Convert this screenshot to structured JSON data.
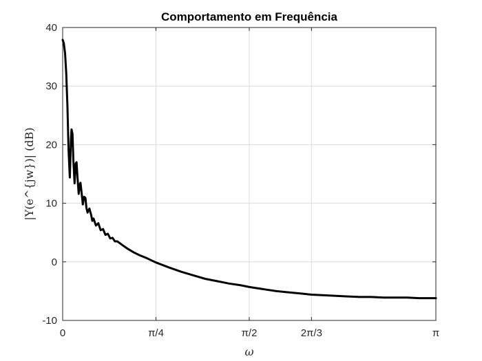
{
  "chart_data": {
    "type": "line",
    "title": "Comportamento em Frequência",
    "xlabel": "ω",
    "ylabel": "|Y(e^{jw})| (dB)",
    "xlim": [
      0,
      3.14159
    ],
    "ylim": [
      -10,
      40
    ],
    "grid": true,
    "legend": "none",
    "x_ticks": [
      {
        "value": 0,
        "label": "0"
      },
      {
        "value": 0.7854,
        "label": "π/4"
      },
      {
        "value": 1.5708,
        "label": "π/2"
      },
      {
        "value": 2.0944,
        "label": "2π/3"
      },
      {
        "value": 3.1416,
        "label": "π"
      }
    ],
    "y_ticks": [
      {
        "value": -10,
        "label": "-10"
      },
      {
        "value": 0,
        "label": "0"
      },
      {
        "value": 10,
        "label": "10"
      },
      {
        "value": 20,
        "label": "20"
      },
      {
        "value": 30,
        "label": "30"
      },
      {
        "value": 40,
        "label": "40"
      }
    ],
    "series": [
      {
        "color": "#000000",
        "x": [
          0.0,
          0.01,
          0.02,
          0.03,
          0.04,
          0.05,
          0.06,
          0.07,
          0.075,
          0.083,
          0.09,
          0.1,
          0.11,
          0.117,
          0.125,
          0.135,
          0.145,
          0.15,
          0.16,
          0.17,
          0.18,
          0.192,
          0.2,
          0.21,
          0.225,
          0.24,
          0.25,
          0.26,
          0.28,
          0.3,
          0.32,
          0.34,
          0.36,
          0.38,
          0.4,
          0.42,
          0.44,
          0.46,
          0.5,
          0.55,
          0.6,
          0.65,
          0.7,
          0.785,
          0.9,
          1.0,
          1.1,
          1.2,
          1.3,
          1.4,
          1.5,
          1.571,
          1.7,
          1.8,
          1.9,
          2.0,
          2.094,
          2.2,
          2.3,
          2.4,
          2.5,
          2.6,
          2.7,
          2.8,
          2.9,
          3.0,
          3.1,
          3.142
        ],
        "y": [
          37.9,
          37.3,
          35.6,
          32.2,
          26.7,
          19.0,
          14.4,
          21.0,
          22.6,
          21.8,
          17.5,
          13.4,
          16.8,
          17.0,
          14.3,
          11.6,
          13.2,
          13.5,
          11.7,
          9.8,
          11.1,
          10.9,
          9.2,
          8.4,
          9.1,
          8.0,
          7.0,
          7.4,
          6.2,
          6.6,
          5.4,
          5.6,
          4.6,
          4.8,
          4.0,
          4.1,
          3.5,
          3.5,
          2.9,
          2.2,
          1.6,
          1.1,
          0.7,
          -0.1,
          -1.0,
          -1.7,
          -2.3,
          -2.9,
          -3.3,
          -3.7,
          -4.0,
          -4.3,
          -4.7,
          -5.0,
          -5.2,
          -5.4,
          -5.6,
          -5.7,
          -5.8,
          -5.9,
          -6.0,
          -6.0,
          -6.1,
          -6.1,
          -6.1,
          -6.2,
          -6.2,
          -6.2
        ]
      }
    ]
  }
}
